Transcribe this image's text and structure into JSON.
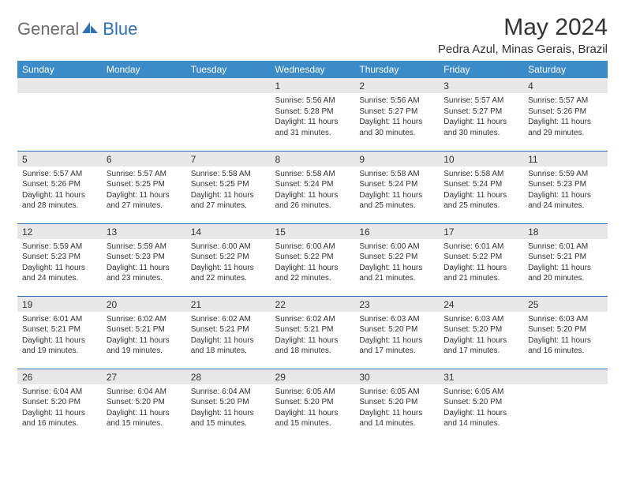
{
  "logo": {
    "text1": "General",
    "text2": "Blue"
  },
  "title": "May 2024",
  "location": "Pedra Azul, Minas Gerais, Brazil",
  "colors": {
    "header_bg": "#3b8bc9",
    "header_text": "#ffffff",
    "daynum_bg": "#e8e8e8",
    "border": "#2d72b8",
    "text": "#333333",
    "logo_gray": "#6c6c6c",
    "logo_blue": "#2d72b8",
    "page_bg": "#ffffff"
  },
  "typography": {
    "title_fontsize": 30,
    "location_fontsize": 15,
    "dayheader_fontsize": 12,
    "daynum_fontsize": 12,
    "body_fontsize": 10
  },
  "weekdays": [
    "Sunday",
    "Monday",
    "Tuesday",
    "Wednesday",
    "Thursday",
    "Friday",
    "Saturday"
  ],
  "weeks": [
    [
      null,
      null,
      null,
      {
        "n": "1",
        "sr": "5:56 AM",
        "ss": "5:28 PM",
        "d1": "11 hours",
        "d2": "31 minutes"
      },
      {
        "n": "2",
        "sr": "5:56 AM",
        "ss": "5:27 PM",
        "d1": "11 hours",
        "d2": "30 minutes"
      },
      {
        "n": "3",
        "sr": "5:57 AM",
        "ss": "5:27 PM",
        "d1": "11 hours",
        "d2": "30 minutes"
      },
      {
        "n": "4",
        "sr": "5:57 AM",
        "ss": "5:26 PM",
        "d1": "11 hours",
        "d2": "29 minutes"
      }
    ],
    [
      {
        "n": "5",
        "sr": "5:57 AM",
        "ss": "5:26 PM",
        "d1": "11 hours",
        "d2": "28 minutes"
      },
      {
        "n": "6",
        "sr": "5:57 AM",
        "ss": "5:25 PM",
        "d1": "11 hours",
        "d2": "27 minutes"
      },
      {
        "n": "7",
        "sr": "5:58 AM",
        "ss": "5:25 PM",
        "d1": "11 hours",
        "d2": "27 minutes"
      },
      {
        "n": "8",
        "sr": "5:58 AM",
        "ss": "5:24 PM",
        "d1": "11 hours",
        "d2": "26 minutes"
      },
      {
        "n": "9",
        "sr": "5:58 AM",
        "ss": "5:24 PM",
        "d1": "11 hours",
        "d2": "25 minutes"
      },
      {
        "n": "10",
        "sr": "5:58 AM",
        "ss": "5:24 PM",
        "d1": "11 hours",
        "d2": "25 minutes"
      },
      {
        "n": "11",
        "sr": "5:59 AM",
        "ss": "5:23 PM",
        "d1": "11 hours",
        "d2": "24 minutes"
      }
    ],
    [
      {
        "n": "12",
        "sr": "5:59 AM",
        "ss": "5:23 PM",
        "d1": "11 hours",
        "d2": "24 minutes"
      },
      {
        "n": "13",
        "sr": "5:59 AM",
        "ss": "5:23 PM",
        "d1": "11 hours",
        "d2": "23 minutes"
      },
      {
        "n": "14",
        "sr": "6:00 AM",
        "ss": "5:22 PM",
        "d1": "11 hours",
        "d2": "22 minutes"
      },
      {
        "n": "15",
        "sr": "6:00 AM",
        "ss": "5:22 PM",
        "d1": "11 hours",
        "d2": "22 minutes"
      },
      {
        "n": "16",
        "sr": "6:00 AM",
        "ss": "5:22 PM",
        "d1": "11 hours",
        "d2": "21 minutes"
      },
      {
        "n": "17",
        "sr": "6:01 AM",
        "ss": "5:22 PM",
        "d1": "11 hours",
        "d2": "21 minutes"
      },
      {
        "n": "18",
        "sr": "6:01 AM",
        "ss": "5:21 PM",
        "d1": "11 hours",
        "d2": "20 minutes"
      }
    ],
    [
      {
        "n": "19",
        "sr": "6:01 AM",
        "ss": "5:21 PM",
        "d1": "11 hours",
        "d2": "19 minutes"
      },
      {
        "n": "20",
        "sr": "6:02 AM",
        "ss": "5:21 PM",
        "d1": "11 hours",
        "d2": "19 minutes"
      },
      {
        "n": "21",
        "sr": "6:02 AM",
        "ss": "5:21 PM",
        "d1": "11 hours",
        "d2": "18 minutes"
      },
      {
        "n": "22",
        "sr": "6:02 AM",
        "ss": "5:21 PM",
        "d1": "11 hours",
        "d2": "18 minutes"
      },
      {
        "n": "23",
        "sr": "6:03 AM",
        "ss": "5:20 PM",
        "d1": "11 hours",
        "d2": "17 minutes"
      },
      {
        "n": "24",
        "sr": "6:03 AM",
        "ss": "5:20 PM",
        "d1": "11 hours",
        "d2": "17 minutes"
      },
      {
        "n": "25",
        "sr": "6:03 AM",
        "ss": "5:20 PM",
        "d1": "11 hours",
        "d2": "16 minutes"
      }
    ],
    [
      {
        "n": "26",
        "sr": "6:04 AM",
        "ss": "5:20 PM",
        "d1": "11 hours",
        "d2": "16 minutes"
      },
      {
        "n": "27",
        "sr": "6:04 AM",
        "ss": "5:20 PM",
        "d1": "11 hours",
        "d2": "15 minutes"
      },
      {
        "n": "28",
        "sr": "6:04 AM",
        "ss": "5:20 PM",
        "d1": "11 hours",
        "d2": "15 minutes"
      },
      {
        "n": "29",
        "sr": "6:05 AM",
        "ss": "5:20 PM",
        "d1": "11 hours",
        "d2": "15 minutes"
      },
      {
        "n": "30",
        "sr": "6:05 AM",
        "ss": "5:20 PM",
        "d1": "11 hours",
        "d2": "14 minutes"
      },
      {
        "n": "31",
        "sr": "6:05 AM",
        "ss": "5:20 PM",
        "d1": "11 hours",
        "d2": "14 minutes"
      },
      null
    ]
  ],
  "labels": {
    "sunrise": "Sunrise:",
    "sunset": "Sunset:",
    "daylight": "Daylight:",
    "and": "and"
  }
}
